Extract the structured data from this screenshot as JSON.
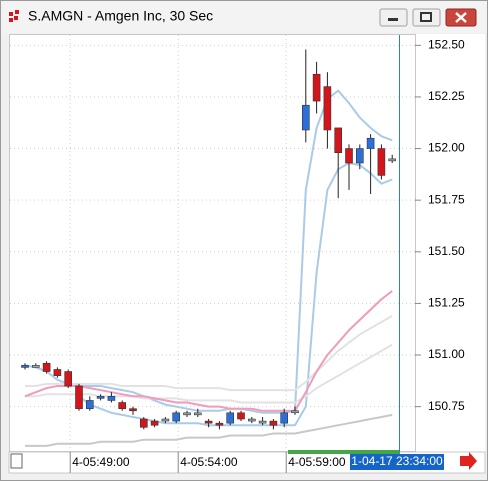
{
  "chart_data": {
    "type": "candlestick",
    "title": "S.AMGN - Amgen Inc, 30 Sec",
    "categories": [
      null,
      null,
      null,
      null,
      "4-05:49:00",
      null,
      null,
      null,
      null,
      null,
      null,
      null,
      null,
      null,
      "4-05:54:00",
      null,
      null,
      null,
      null,
      null,
      null,
      null,
      null,
      null,
      "4-05:59:00",
      null,
      null,
      null,
      null,
      null,
      null,
      null,
      null,
      null,
      null
    ],
    "open": [
      150.94,
      150.95,
      150.96,
      150.93,
      150.92,
      150.85,
      150.74,
      150.79,
      150.78,
      150.77,
      150.74,
      150.69,
      150.68,
      150.69,
      150.68,
      150.72,
      150.72,
      150.68,
      150.67,
      150.67,
      150.72,
      150.69,
      150.68,
      150.68,
      150.67,
      150.73,
      152.09,
      152.36,
      152.3,
      152.1,
      152.0,
      151.93,
      152.0,
      152.0,
      151.95
    ],
    "high": [
      150.96,
      150.96,
      150.97,
      150.94,
      150.93,
      150.86,
      150.8,
      150.81,
      150.82,
      150.78,
      150.75,
      150.7,
      150.69,
      150.7,
      150.73,
      150.73,
      150.74,
      150.69,
      150.68,
      150.73,
      150.73,
      150.7,
      150.7,
      150.69,
      150.74,
      150.75,
      152.48,
      152.42,
      152.37,
      152.1,
      152.02,
      152.02,
      152.07,
      152.02,
      151.97
    ],
    "low": [
      150.93,
      150.94,
      150.91,
      150.89,
      150.84,
      150.73,
      150.73,
      150.78,
      150.77,
      150.73,
      150.71,
      150.64,
      150.65,
      150.67,
      150.67,
      150.7,
      150.7,
      150.65,
      150.64,
      150.66,
      150.68,
      150.67,
      150.66,
      150.64,
      150.65,
      150.71,
      152.03,
      152.17,
      152.0,
      151.76,
      151.8,
      151.9,
      151.78,
      151.85,
      151.93
    ],
    "close": [
      150.95,
      150.95,
      150.92,
      150.9,
      150.85,
      150.74,
      150.78,
      150.8,
      150.8,
      150.74,
      150.73,
      150.65,
      150.66,
      150.69,
      150.72,
      150.72,
      150.72,
      150.67,
      150.66,
      150.72,
      150.69,
      150.69,
      150.68,
      150.66,
      150.72,
      150.73,
      152.21,
      152.23,
      152.09,
      151.98,
      151.93,
      152.0,
      152.05,
      151.87,
      151.95
    ],
    "up_color": "#2b6fd8",
    "down_color": "#d2161c",
    "flat_color": "#9aa3ad",
    "overlays": [
      {
        "color": "#a9cbe8",
        "values": [
          150.95,
          150.94,
          150.92,
          150.88,
          150.86,
          150.85,
          150.85,
          150.85,
          150.84,
          150.83,
          150.82,
          150.8,
          150.78,
          150.76,
          150.75,
          150.74,
          150.73,
          150.73,
          150.73,
          150.74,
          150.74,
          150.73,
          150.72,
          150.72,
          150.72,
          150.73,
          151.8,
          152.1,
          152.24,
          152.28,
          152.22,
          152.15,
          152.1,
          152.06,
          152.04
        ]
      },
      {
        "color": "#a9cbe8",
        "values": [
          null,
          null,
          null,
          null,
          null,
          150.8,
          150.76,
          150.74,
          150.72,
          150.71,
          150.7,
          150.69,
          150.68,
          150.67,
          150.67,
          150.67,
          150.67,
          150.66,
          150.66,
          150.66,
          150.66,
          150.66,
          150.66,
          150.66,
          150.66,
          150.66,
          150.75,
          151.4,
          151.8,
          151.9,
          151.93,
          151.92,
          151.88,
          151.83,
          151.85
        ]
      },
      {
        "color": "#e2e2e2",
        "values": [
          150.85,
          150.85,
          150.86,
          150.86,
          150.86,
          150.86,
          150.86,
          150.86,
          150.86,
          150.85,
          150.85,
          150.85,
          150.85,
          150.85,
          150.84,
          150.84,
          150.84,
          150.84,
          150.84,
          150.83,
          150.83,
          150.83,
          150.83,
          150.83,
          150.83,
          150.83,
          150.87,
          150.92,
          150.97,
          151.02,
          151.06,
          151.1,
          151.13,
          151.16,
          151.19
        ]
      },
      {
        "color": "#e2e2e2",
        "values": [
          150.8,
          150.8,
          150.81,
          150.81,
          150.81,
          150.81,
          150.81,
          150.8,
          150.8,
          150.8,
          150.8,
          150.79,
          150.79,
          150.79,
          150.79,
          150.78,
          150.78,
          150.78,
          150.78,
          150.78,
          150.77,
          150.77,
          150.77,
          150.77,
          150.77,
          150.77,
          150.8,
          150.84,
          150.87,
          150.9,
          150.93,
          150.96,
          150.99,
          151.02,
          151.05
        ]
      },
      {
        "color": "#f29abb",
        "values": [
          150.8,
          150.82,
          150.84,
          150.85,
          150.85,
          150.85,
          150.84,
          150.83,
          150.82,
          150.81,
          150.8,
          150.8,
          150.79,
          150.78,
          150.77,
          150.77,
          150.76,
          150.75,
          150.75,
          150.74,
          150.74,
          150.74,
          150.73,
          150.73,
          150.73,
          150.73,
          150.82,
          150.92,
          151.0,
          151.06,
          151.12,
          151.17,
          151.22,
          151.27,
          151.31
        ]
      },
      {
        "color": "#c8c8c8",
        "values": [
          150.56,
          150.56,
          150.56,
          150.57,
          150.57,
          150.57,
          150.57,
          150.58,
          150.58,
          150.58,
          150.58,
          150.59,
          150.59,
          150.59,
          150.59,
          150.6,
          150.6,
          150.6,
          150.6,
          150.61,
          150.61,
          150.61,
          150.61,
          150.62,
          150.62,
          150.62,
          150.63,
          150.64,
          150.65,
          150.66,
          150.67,
          150.68,
          150.69,
          150.7,
          150.71
        ]
      }
    ],
    "ylim": [
      150.54,
      152.55
    ],
    "yticks": [
      150.75,
      {
        "value": 151.0,
        "label": "151.00"
      },
      151.25,
      {
        "value": 151.5,
        "label": "151.50"
      },
      151.75,
      {
        "value": 152.0,
        "label": "152.00"
      },
      152.25,
      {
        "value": 152.5,
        "label": "152.50"
      }
    ],
    "grid": true,
    "cursor_label": "1-04-17 23:34:00"
  }
}
